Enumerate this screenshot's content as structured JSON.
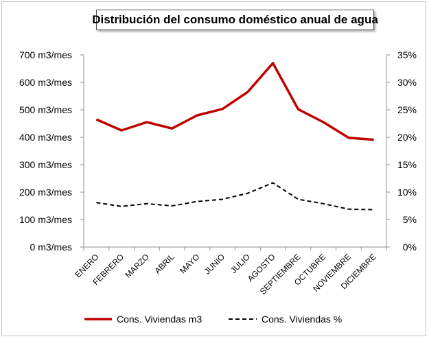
{
  "chart_data": {
    "type": "line",
    "title": "Distribución del consumo doméstico anual de agua",
    "categories": [
      "ENERO",
      "FEBRERO",
      "MARZO",
      "ABRIL",
      "MAYO",
      "JUNIO",
      "JULIO",
      "AGOSTO",
      "SEPTIEMBRE",
      "OCTUBRE",
      "NOVIEMBRE",
      "DICIEMBRE"
    ],
    "y_left": {
      "ylim": [
        0,
        700
      ],
      "ticks": [
        0,
        100,
        200,
        300,
        400,
        500,
        600,
        700
      ],
      "tick_labels": [
        "0 m3/mes",
        "100 m3/mes",
        "200 m3/mes",
        "300 m3/mes",
        "400 m3/mes",
        "500 m3/mes",
        "600 m3/mes",
        "700 m3/mes"
      ]
    },
    "y_right": {
      "ylim": [
        0,
        35
      ],
      "ticks": [
        0,
        5,
        10,
        15,
        20,
        25,
        30,
        35
      ],
      "tick_labels": [
        "0%",
        "5%",
        "10%",
        "15%",
        "20%",
        "25%",
        "30%",
        "35%"
      ]
    },
    "series": [
      {
        "name": "Cons. Viviendas m3",
        "axis": "left",
        "color": "#c00000",
        "style": "solid",
        "values": [
          465,
          425,
          455,
          432,
          480,
          503,
          565,
          670,
          502,
          455,
          398,
          391
        ]
      },
      {
        "name": "Cons. Viviendas %",
        "axis": "right",
        "color": "#000000",
        "style": "dashed",
        "values": [
          8.1,
          7.4,
          7.9,
          7.5,
          8.3,
          8.7,
          9.8,
          11.7,
          8.7,
          7.9,
          6.9,
          6.8
        ]
      }
    ],
    "grid": false,
    "legend_position": "bottom"
  }
}
